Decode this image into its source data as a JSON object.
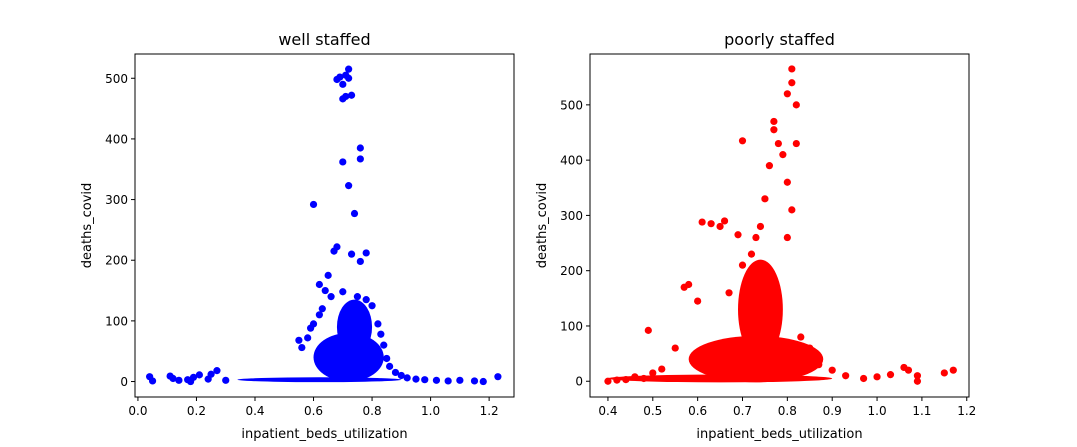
{
  "chart_data": [
    {
      "type": "scatter",
      "title": "well staffed",
      "xlabel": "inpatient_beds_utilization",
      "ylabel": "deaths_covid",
      "xlim": [
        -0.01,
        1.285
      ],
      "ylim": [
        -25.5,
        540
      ],
      "xticks": [
        0.0,
        0.2,
        0.4,
        0.6,
        0.8,
        1.0,
        1.2
      ],
      "yticks": [
        0,
        100,
        200,
        300,
        400,
        500
      ],
      "xtick_labels": [
        "0.0",
        "0.2",
        "0.4",
        "0.6",
        "0.8",
        "1.0",
        "1.2"
      ],
      "ytick_labels": [
        "0",
        "100",
        "200",
        "300",
        "400",
        "500"
      ],
      "grid": false,
      "series": [
        {
          "color": "#0000ff",
          "points": [
            [
              0.04,
              8
            ],
            [
              0.05,
              1
            ],
            [
              0.11,
              9
            ],
            [
              0.12,
              5
            ],
            [
              0.14,
              2
            ],
            [
              0.17,
              3
            ],
            [
              0.18,
              0
            ],
            [
              0.19,
              7
            ],
            [
              0.21,
              11
            ],
            [
              0.24,
              4
            ],
            [
              0.25,
              12
            ],
            [
              0.27,
              18
            ],
            [
              0.3,
              2
            ],
            [
              0.6,
              292
            ],
            [
              0.65,
              175
            ],
            [
              0.67,
              215
            ],
            [
              0.68,
              222
            ],
            [
              0.68,
              498
            ],
            [
              0.69,
              502
            ],
            [
              0.7,
              490
            ],
            [
              0.7,
              466
            ],
            [
              0.7,
              362
            ],
            [
              0.71,
              505
            ],
            [
              0.71,
              470
            ],
            [
              0.72,
              515
            ],
            [
              0.72,
              500
            ],
            [
              0.72,
              323
            ],
            [
              0.73,
              472
            ],
            [
              0.73,
              210
            ],
            [
              0.74,
              277
            ],
            [
              0.76,
              385
            ],
            [
              0.76,
              367
            ],
            [
              0.76,
              198
            ],
            [
              0.78,
              212
            ],
            [
              0.62,
              160
            ],
            [
              0.64,
              150
            ],
            [
              0.66,
              140
            ],
            [
              0.7,
              148
            ],
            [
              0.75,
              140
            ],
            [
              0.78,
              135
            ],
            [
              0.8,
              125
            ],
            [
              0.55,
              68
            ],
            [
              0.56,
              56
            ],
            [
              0.58,
              72
            ],
            [
              0.59,
              88
            ],
            [
              0.6,
              95
            ],
            [
              0.62,
              110
            ],
            [
              0.63,
              120
            ],
            [
              0.82,
              95
            ],
            [
              0.83,
              78
            ],
            [
              0.84,
              60
            ],
            [
              0.85,
              38
            ],
            [
              0.86,
              25
            ],
            [
              0.88,
              15
            ],
            [
              0.9,
              10
            ],
            [
              0.92,
              6
            ],
            [
              0.95,
              4
            ],
            [
              0.98,
              3
            ],
            [
              1.02,
              2
            ],
            [
              1.06,
              1
            ],
            [
              1.1,
              2
            ],
            [
              1.15,
              1
            ],
            [
              1.18,
              0
            ],
            [
              1.23,
              8
            ]
          ]
        }
      ]
    },
    {
      "type": "scatter",
      "title": "poorly staffed",
      "xlabel": "inpatient_beds_utilization",
      "ylabel": "deaths_covid",
      "xlim": [
        0.36,
        1.205
      ],
      "ylim": [
        -28.5,
        592
      ],
      "xticks": [
        0.4,
        0.5,
        0.6,
        0.7,
        0.8,
        0.9,
        1.0,
        1.1,
        1.2
      ],
      "yticks": [
        0,
        100,
        200,
        300,
        400,
        500
      ],
      "xtick_labels": [
        "0.4",
        "0.5",
        "0.6",
        "0.7",
        "0.8",
        "0.9",
        "1.0",
        "1.1",
        "1.2"
      ],
      "ytick_labels": [
        "0",
        "100",
        "200",
        "300",
        "400",
        "500"
      ],
      "grid": false,
      "series": [
        {
          "color": "#ff0000",
          "points": [
            [
              0.4,
              0
            ],
            [
              0.42,
              2
            ],
            [
              0.44,
              3
            ],
            [
              0.46,
              8
            ],
            [
              0.48,
              5
            ],
            [
              0.49,
              92
            ],
            [
              0.5,
              15
            ],
            [
              0.52,
              22
            ],
            [
              0.55,
              60
            ],
            [
              0.57,
              170
            ],
            [
              0.58,
              175
            ],
            [
              0.6,
              145
            ],
            [
              0.61,
              288
            ],
            [
              0.63,
              285
            ],
            [
              0.65,
              280
            ],
            [
              0.66,
              290
            ],
            [
              0.67,
              160
            ],
            [
              0.69,
              265
            ],
            [
              0.7,
              210
            ],
            [
              0.7,
              435
            ],
            [
              0.72,
              230
            ],
            [
              0.73,
              260
            ],
            [
              0.74,
              280
            ],
            [
              0.75,
              330
            ],
            [
              0.76,
              390
            ],
            [
              0.77,
              455
            ],
            [
              0.77,
              470
            ],
            [
              0.78,
              430
            ],
            [
              0.79,
              410
            ],
            [
              0.8,
              360
            ],
            [
              0.8,
              520
            ],
            [
              0.81,
              565
            ],
            [
              0.81,
              540
            ],
            [
              0.82,
              500
            ],
            [
              0.82,
              430
            ],
            [
              0.81,
              310
            ],
            [
              0.8,
              260
            ],
            [
              0.83,
              80
            ],
            [
              0.85,
              60
            ],
            [
              0.87,
              30
            ],
            [
              0.9,
              20
            ],
            [
              0.93,
              10
            ],
            [
              0.97,
              5
            ],
            [
              1.0,
              8
            ],
            [
              1.03,
              12
            ],
            [
              1.06,
              25
            ],
            [
              1.07,
              20
            ],
            [
              1.09,
              10
            ],
            [
              1.09,
              0
            ],
            [
              1.15,
              15
            ],
            [
              1.17,
              20
            ]
          ]
        }
      ]
    }
  ]
}
